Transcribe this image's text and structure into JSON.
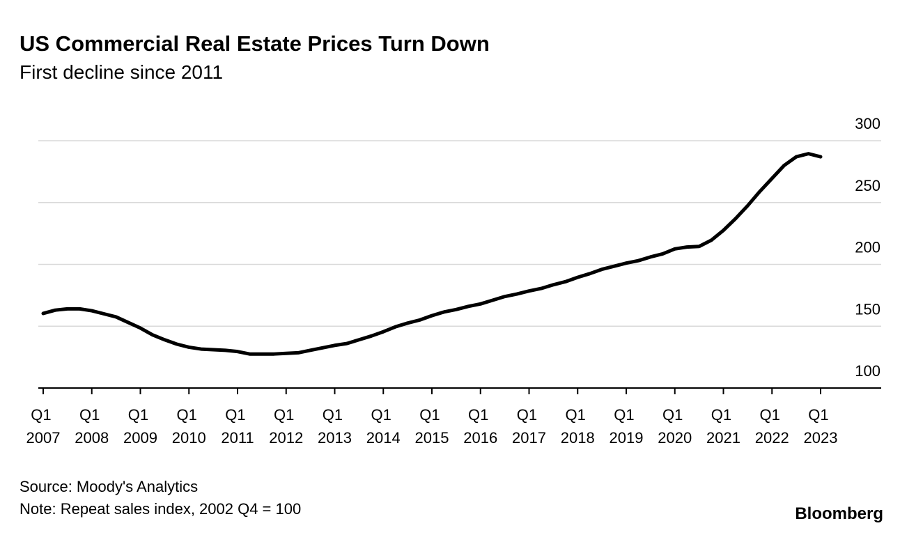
{
  "chart_data": {
    "type": "line",
    "title": "US Commercial Real Estate Prices Turn Down",
    "subtitle": "First decline since 2011",
    "source": "Source: Moody's Analytics",
    "note": "Note: Repeat sales index, 2002 Q4 = 100",
    "brand": "Bloomberg",
    "categories": [
      "Q1 2007",
      null,
      null,
      null,
      "Q1 2008",
      null,
      null,
      null,
      "Q1 2009",
      null,
      null,
      null,
      "Q1 2010",
      null,
      null,
      null,
      "Q1 2011",
      null,
      null,
      null,
      "Q1 2012",
      null,
      null,
      null,
      "Q1 2013",
      null,
      null,
      null,
      "Q1 2014",
      null,
      null,
      null,
      "Q1 2015",
      null,
      null,
      null,
      "Q1 2016",
      null,
      null,
      null,
      "Q1 2017",
      null,
      null,
      null,
      "Q1 2018",
      null,
      null,
      null,
      "Q1 2019",
      null,
      null,
      null,
      "Q1 2020",
      null,
      null,
      null,
      "Q1 2021",
      null,
      null,
      null,
      "Q1 2022",
      null,
      null,
      null,
      "Q1 2023"
    ],
    "values": [
      160.3,
      163,
      164,
      164,
      162.5,
      160,
      157.5,
      153,
      148.5,
      143,
      139,
      135.5,
      133,
      131.5,
      131,
      130.5,
      129.5,
      127.5,
      127.5,
      127.5,
      128,
      128.5,
      130.5,
      132.5,
      134.5,
      136,
      139,
      142,
      145.5,
      149.5,
      152.5,
      155,
      158.5,
      161.5,
      163.5,
      166,
      168,
      171,
      174,
      176,
      178.5,
      180.5,
      183.5,
      186,
      189.5,
      192.5,
      196,
      198.5,
      201,
      203,
      206,
      208.5,
      212.5,
      214,
      214.5,
      219.5,
      227.5,
      237,
      247.5,
      259,
      269.5,
      280,
      287,
      289.5,
      287
    ],
    "color": "#000000",
    "ylim": [
      100,
      300
    ],
    "yticks": [
      100,
      150,
      200,
      250,
      300
    ],
    "grid": true
  }
}
